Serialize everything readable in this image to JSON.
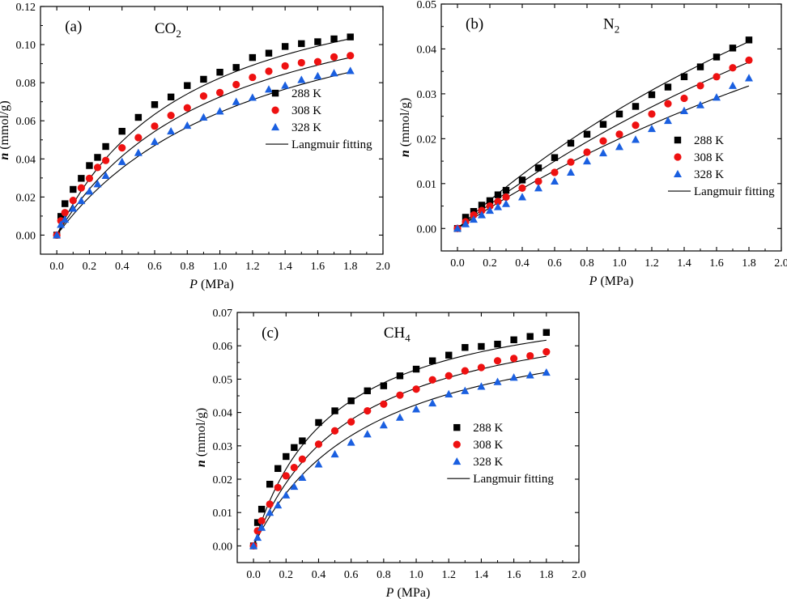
{
  "colors": {
    "s288": "#000000",
    "s308": "#ee1111",
    "s328": "#1a5fe0",
    "fit": "#000000",
    "axis": "#000000"
  },
  "legend": {
    "items": [
      "288 K",
      "308 K",
      "328 K"
    ],
    "fit_label": "Langmuir fitting"
  },
  "chart_data": [
    {
      "type": "scatter",
      "panel": "(a)",
      "gas": "CO",
      "gas_sub": "2",
      "xlabel_var": "P",
      "xlabel_unit": " (MPa)",
      "ylabel_var": "n",
      "ylabel_unit": " (mmol/g)",
      "xlim": [
        -0.1,
        2.0
      ],
      "ylim": [
        -0.01,
        0.12
      ],
      "xticks": [
        "0.0",
        "0.2",
        "0.4",
        "0.6",
        "0.8",
        "1.0",
        "1.2",
        "1.4",
        "1.6",
        "1.8",
        "2.0"
      ],
      "yticks": [
        "0.00",
        "0.02",
        "0.04",
        "0.06",
        "0.08",
        "0.10",
        "0.12"
      ],
      "x": [
        0,
        0.025,
        0.05,
        0.1,
        0.15,
        0.2,
        0.25,
        0.3,
        0.4,
        0.5,
        0.6,
        0.7,
        0.8,
        0.9,
        1.0,
        1.1,
        1.2,
        1.3,
        1.4,
        1.5,
        1.6,
        1.7,
        1.8
      ],
      "series": [
        {
          "name": "288 K",
          "marker": "square",
          "values": [
            0,
            0.0098,
            0.0165,
            0.024,
            0.0298,
            0.0365,
            0.0408,
            0.0465,
            0.0545,
            0.0618,
            0.0685,
            0.0725,
            0.0785,
            0.0818,
            0.0855,
            0.088,
            0.0932,
            0.0955,
            0.099,
            0.1005,
            0.1015,
            0.103,
            0.104
          ],
          "fit": {
            "qmax": 0.15,
            "b": 1.22
          }
        },
        {
          "name": "308 K",
          "marker": "circle",
          "values": [
            0,
            0.0075,
            0.0118,
            0.0182,
            0.0248,
            0.0298,
            0.0355,
            0.0392,
            0.0458,
            0.0512,
            0.0572,
            0.0628,
            0.0668,
            0.073,
            0.0748,
            0.079,
            0.0828,
            0.086,
            0.0888,
            0.0905,
            0.091,
            0.0935,
            0.0942
          ],
          "fit": {
            "qmax": 0.145,
            "b": 1.0
          }
        },
        {
          "name": "328 K",
          "marker": "triangle",
          "values": [
            0,
            0.0055,
            0.0082,
            0.014,
            0.018,
            0.023,
            0.0268,
            0.0312,
            0.0385,
            0.0432,
            0.049,
            0.0545,
            0.0575,
            0.0618,
            0.065,
            0.07,
            0.0722,
            0.0765,
            0.0785,
            0.0815,
            0.0835,
            0.085,
            0.0862
          ],
          "fit": {
            "qmax": 0.145,
            "b": 0.8
          }
        }
      ]
    },
    {
      "type": "scatter",
      "panel": "(b)",
      "gas": "N",
      "gas_sub": "2",
      "xlabel_var": "P",
      "xlabel_unit": " (MPa)",
      "ylabel_var": "n",
      "ylabel_unit": " (mmol/g)",
      "xlim": [
        -0.1,
        2.0
      ],
      "ylim": [
        -0.005,
        0.05
      ],
      "xticks": [
        "0.0",
        "0.2",
        "0.4",
        "0.6",
        "0.8",
        "1.0",
        "1.2",
        "1.4",
        "1.6",
        "1.8",
        "2.0"
      ],
      "yticks": [
        "0.00",
        "0.01",
        "0.02",
        "0.03",
        "0.04",
        "0.05"
      ],
      "x": [
        0,
        0.05,
        0.1,
        0.15,
        0.2,
        0.25,
        0.3,
        0.4,
        0.5,
        0.6,
        0.7,
        0.8,
        0.9,
        1.0,
        1.1,
        1.2,
        1.3,
        1.4,
        1.5,
        1.6,
        1.7,
        1.8
      ],
      "series": [
        {
          "name": "288 K",
          "marker": "square",
          "values": [
            0,
            0.0025,
            0.0038,
            0.0052,
            0.0062,
            0.0075,
            0.0085,
            0.0108,
            0.0135,
            0.0158,
            0.019,
            0.021,
            0.0232,
            0.0255,
            0.0272,
            0.0298,
            0.0315,
            0.0338,
            0.036,
            0.0382,
            0.0402,
            0.042
          ],
          "fit": {
            "qmax": 0.14,
            "b": 0.235
          }
        },
        {
          "name": "308 K",
          "marker": "circle",
          "values": [
            0,
            0.0015,
            0.003,
            0.004,
            0.005,
            0.006,
            0.007,
            0.009,
            0.0105,
            0.0125,
            0.0148,
            0.017,
            0.0195,
            0.021,
            0.023,
            0.0255,
            0.0278,
            0.029,
            0.0318,
            0.0338,
            0.0358,
            0.0375
          ],
          "fit": {
            "qmax": 0.14,
            "b": 0.2
          }
        },
        {
          "name": "328 K",
          "marker": "triangle",
          "values": [
            0,
            0.001,
            0.002,
            0.003,
            0.004,
            0.0048,
            0.0055,
            0.007,
            0.009,
            0.0105,
            0.0125,
            0.015,
            0.0168,
            0.0182,
            0.0198,
            0.0222,
            0.024,
            0.0262,
            0.0275,
            0.0292,
            0.0318,
            0.0335
          ],
          "fit": {
            "qmax": 0.12,
            "b": 0.2
          }
        }
      ]
    },
    {
      "type": "scatter",
      "panel": "(c)",
      "gas": "CH",
      "gas_sub": "4",
      "xlabel_var": "P",
      "xlabel_unit": " (MPa)",
      "ylabel_var": "n",
      "ylabel_unit": " (mmol/g)",
      "xlim": [
        -0.1,
        2.0
      ],
      "ylim": [
        -0.005,
        0.07
      ],
      "xticks": [
        "0.0",
        "0.2",
        "0.4",
        "0.6",
        "0.8",
        "1.0",
        "1.2",
        "1.4",
        "1.6",
        "1.8",
        "2.0"
      ],
      "yticks": [
        "0.00",
        "0.01",
        "0.02",
        "0.03",
        "0.04",
        "0.05",
        "0.06",
        "0.07"
      ],
      "x": [
        0,
        0.025,
        0.05,
        0.1,
        0.15,
        0.2,
        0.25,
        0.3,
        0.4,
        0.5,
        0.6,
        0.7,
        0.8,
        0.9,
        1.0,
        1.1,
        1.2,
        1.3,
        1.4,
        1.5,
        1.6,
        1.7,
        1.8
      ],
      "series": [
        {
          "name": "288 K",
          "marker": "square",
          "values": [
            0,
            0.007,
            0.011,
            0.0185,
            0.0232,
            0.0268,
            0.0295,
            0.0315,
            0.037,
            0.0405,
            0.0435,
            0.0465,
            0.048,
            0.051,
            0.053,
            0.0555,
            0.0572,
            0.0595,
            0.0598,
            0.0605,
            0.0618,
            0.0628,
            0.064
          ],
          "fit": {
            "qmax": 0.078,
            "b": 2.1
          }
        },
        {
          "name": "308 K",
          "marker": "circle",
          "values": [
            0,
            0.0045,
            0.0075,
            0.0125,
            0.0175,
            0.021,
            0.0235,
            0.026,
            0.0305,
            0.0345,
            0.0372,
            0.0405,
            0.0425,
            0.0452,
            0.047,
            0.0498,
            0.051,
            0.0525,
            0.0535,
            0.0555,
            0.0562,
            0.057,
            0.0582
          ],
          "fit": {
            "qmax": 0.076,
            "b": 1.65
          }
        },
        {
          "name": "328 K",
          "marker": "triangle",
          "values": [
            0,
            0.0025,
            0.0055,
            0.01,
            0.0122,
            0.0152,
            0.0178,
            0.0205,
            0.0245,
            0.0275,
            0.031,
            0.0335,
            0.0362,
            0.0385,
            0.041,
            0.0428,
            0.0455,
            0.0465,
            0.0478,
            0.0492,
            0.0505,
            0.0512,
            0.052
          ],
          "fit": {
            "qmax": 0.073,
            "b": 1.38
          }
        }
      ]
    }
  ]
}
